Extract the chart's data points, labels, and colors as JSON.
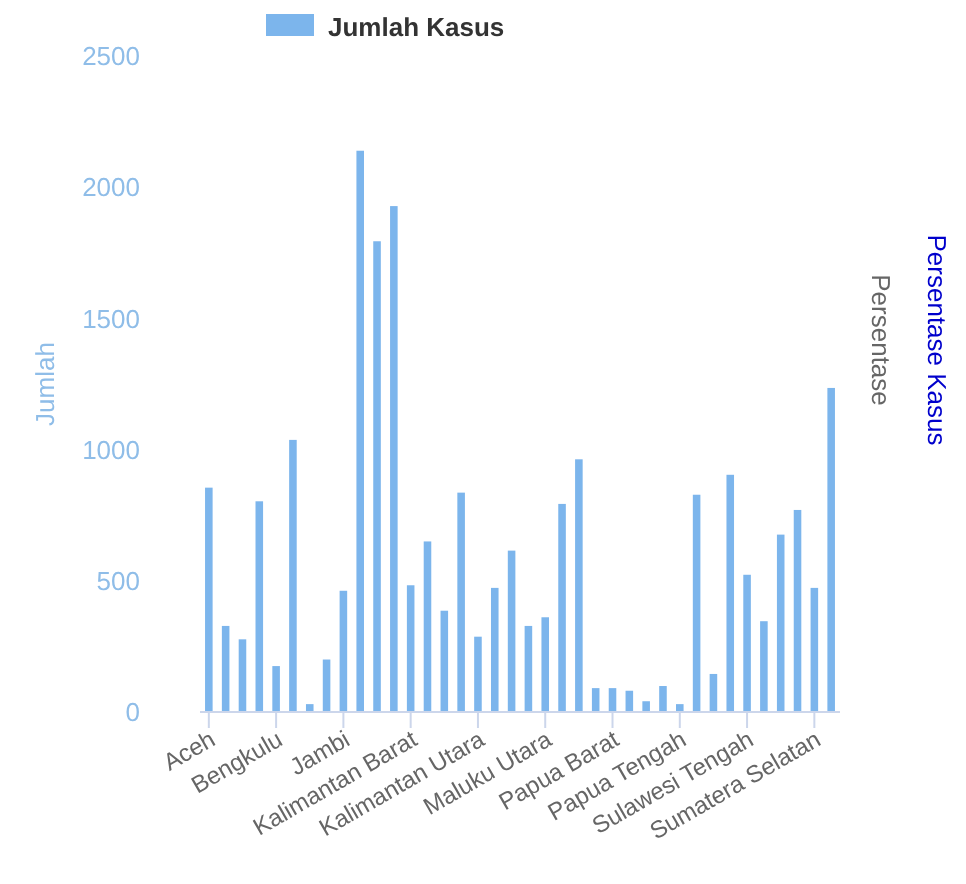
{
  "chart_data": {
    "type": "bar",
    "ylabel": "Jumlah",
    "y2label": "Persentase",
    "y3label": "Persentase Kasus",
    "categories": [
      "Aceh",
      null,
      null,
      null,
      "Bengkulu",
      null,
      null,
      null,
      "Jambi",
      null,
      null,
      null,
      "Kalimantan Barat",
      null,
      null,
      null,
      "Kalimantan Utara",
      null,
      null,
      null,
      "Maluku Utara",
      null,
      null,
      null,
      "Papua Barat",
      null,
      null,
      null,
      "Papua Tengah",
      null,
      null,
      null,
      "Sulawesi Tengah",
      null,
      null,
      null,
      "Sumatera Selatan",
      null
    ],
    "series": [
      {
        "name": "Jumlah Kasus",
        "color": "#7cb5ec",
        "values": [
          855,
          328,
          277,
          803,
          175,
          1037,
          30,
          200,
          462,
          2139,
          1794,
          1928,
          483,
          650,
          386,
          836,
          287,
          473,
          615,
          328,
          361,
          793,
          963,
          91,
          91,
          81,
          41,
          99,
          30,
          828,
          145,
          904,
          523,
          346,
          676,
          770,
          473,
          1235
        ]
      }
    ],
    "ylim": [
      0,
      2500
    ],
    "yticks": [
      0,
      500,
      1000,
      1500,
      2000,
      2500
    ],
    "grid": false,
    "legend": "top"
  }
}
